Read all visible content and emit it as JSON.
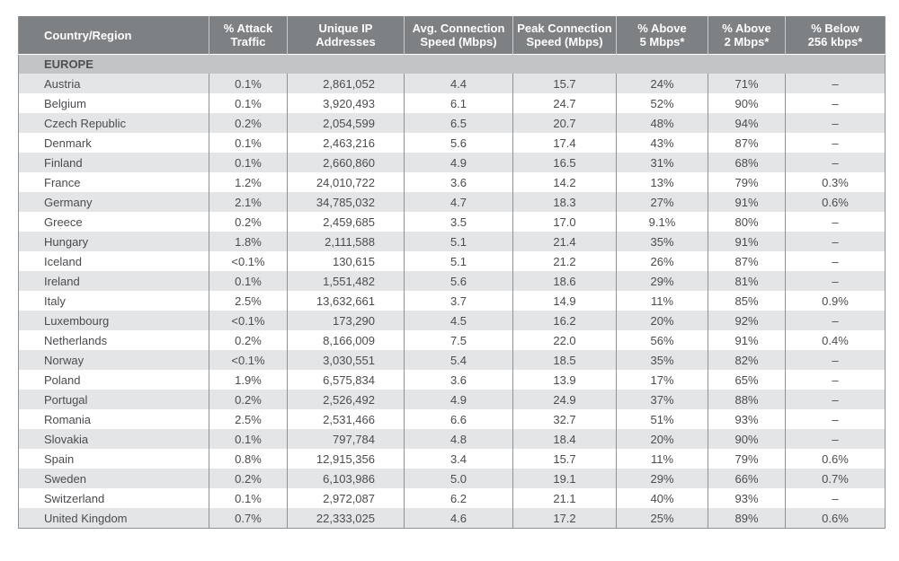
{
  "table": {
    "headers": [
      "Country/Region",
      "% Attack Traffic",
      "Unique IP Addresses",
      "Avg. Connection Speed (Mbps)",
      "Peak Connection Speed (Mbps)",
      "% Above 5 Mbps*",
      "% Above 2 Mbps*",
      "% Below 256 kbps*"
    ],
    "header_lines": [
      [
        "Country/Region",
        ""
      ],
      [
        "% Attack",
        "Traffic"
      ],
      [
        "Unique IP",
        "Addresses"
      ],
      [
        "Avg. Connection",
        "Speed (Mbps)"
      ],
      [
        "Peak Connection",
        "Speed (Mbps)"
      ],
      [
        "% Above",
        "5 Mbps*"
      ],
      [
        "% Above",
        "2 Mbps*"
      ],
      [
        "% Below",
        "256 kbps*"
      ]
    ],
    "section": "EUROPE",
    "rows": [
      [
        "Austria",
        "0.1%",
        "2,861,052",
        "4.4",
        "15.7",
        "24%",
        "71%",
        "–"
      ],
      [
        "Belgium",
        "0.1%",
        "3,920,493",
        "6.1",
        "24.7",
        "52%",
        "90%",
        "–"
      ],
      [
        "Czech Republic",
        "0.2%",
        "2,054,599",
        "6.5",
        "20.7",
        "48%",
        "94%",
        "–"
      ],
      [
        "Denmark",
        "0.1%",
        "2,463,216",
        "5.6",
        "17.4",
        "43%",
        "87%",
        "–"
      ],
      [
        "Finland",
        "0.1%",
        "2,660,860",
        "4.9",
        "16.5",
        "31%",
        "68%",
        "–"
      ],
      [
        "France",
        "1.2%",
        "24,010,722",
        "3.6",
        "14.2",
        "13%",
        "79%",
        "0.3%"
      ],
      [
        "Germany",
        "2.1%",
        "34,785,032",
        "4.7",
        "18.3",
        "27%",
        "91%",
        "0.6%"
      ],
      [
        "Greece",
        "0.2%",
        "2,459,685",
        "3.5",
        "17.0",
        "9.1%",
        "80%",
        "–"
      ],
      [
        "Hungary",
        "1.8%",
        "2,111,588",
        "5.1",
        "21.4",
        "35%",
        "91%",
        "–"
      ],
      [
        "Iceland",
        "<0.1%",
        "130,615",
        "5.1",
        "21.2",
        "26%",
        "87%",
        "–"
      ],
      [
        "Ireland",
        "0.1%",
        "1,551,482",
        "5.6",
        "18.6",
        "29%",
        "81%",
        "–"
      ],
      [
        "Italy",
        "2.5%",
        "13,632,661",
        "3.7",
        "14.9",
        "11%",
        "85%",
        "0.9%"
      ],
      [
        "Luxembourg",
        "<0.1%",
        "173,290",
        "4.5",
        "16.2",
        "20%",
        "92%",
        "–"
      ],
      [
        "Netherlands",
        "0.2%",
        "8,166,009",
        "7.5",
        "22.0",
        "56%",
        "91%",
        "0.4%"
      ],
      [
        "Norway",
        "<0.1%",
        "3,030,551",
        "5.4",
        "18.5",
        "35%",
        "82%",
        "–"
      ],
      [
        "Poland",
        "1.9%",
        "6,575,834",
        "3.6",
        "13.9",
        "17%",
        "65%",
        "–"
      ],
      [
        "Portugal",
        "0.2%",
        "2,526,492",
        "4.9",
        "24.9",
        "37%",
        "88%",
        "–"
      ],
      [
        "Romania",
        "2.5%",
        "2,531,466",
        "6.6",
        "32.7",
        "51%",
        "93%",
        "–"
      ],
      [
        "Slovakia",
        "0.1%",
        "797,784",
        "4.8",
        "18.4",
        "20%",
        "90%",
        "–"
      ],
      [
        "Spain",
        "0.8%",
        "12,915,356",
        "3.4",
        "15.7",
        "11%",
        "79%",
        "0.6%"
      ],
      [
        "Sweden",
        "0.2%",
        "6,103,986",
        "5.0",
        "19.1",
        "29%",
        "66%",
        "0.7%"
      ],
      [
        "Switzerland",
        "0.1%",
        "2,972,087",
        "6.2",
        "21.1",
        "40%",
        "93%",
        "–"
      ],
      [
        "United Kingdom",
        "0.7%",
        "22,333,025",
        "4.6",
        "17.2",
        "25%",
        "89%",
        "0.6%"
      ]
    ]
  }
}
